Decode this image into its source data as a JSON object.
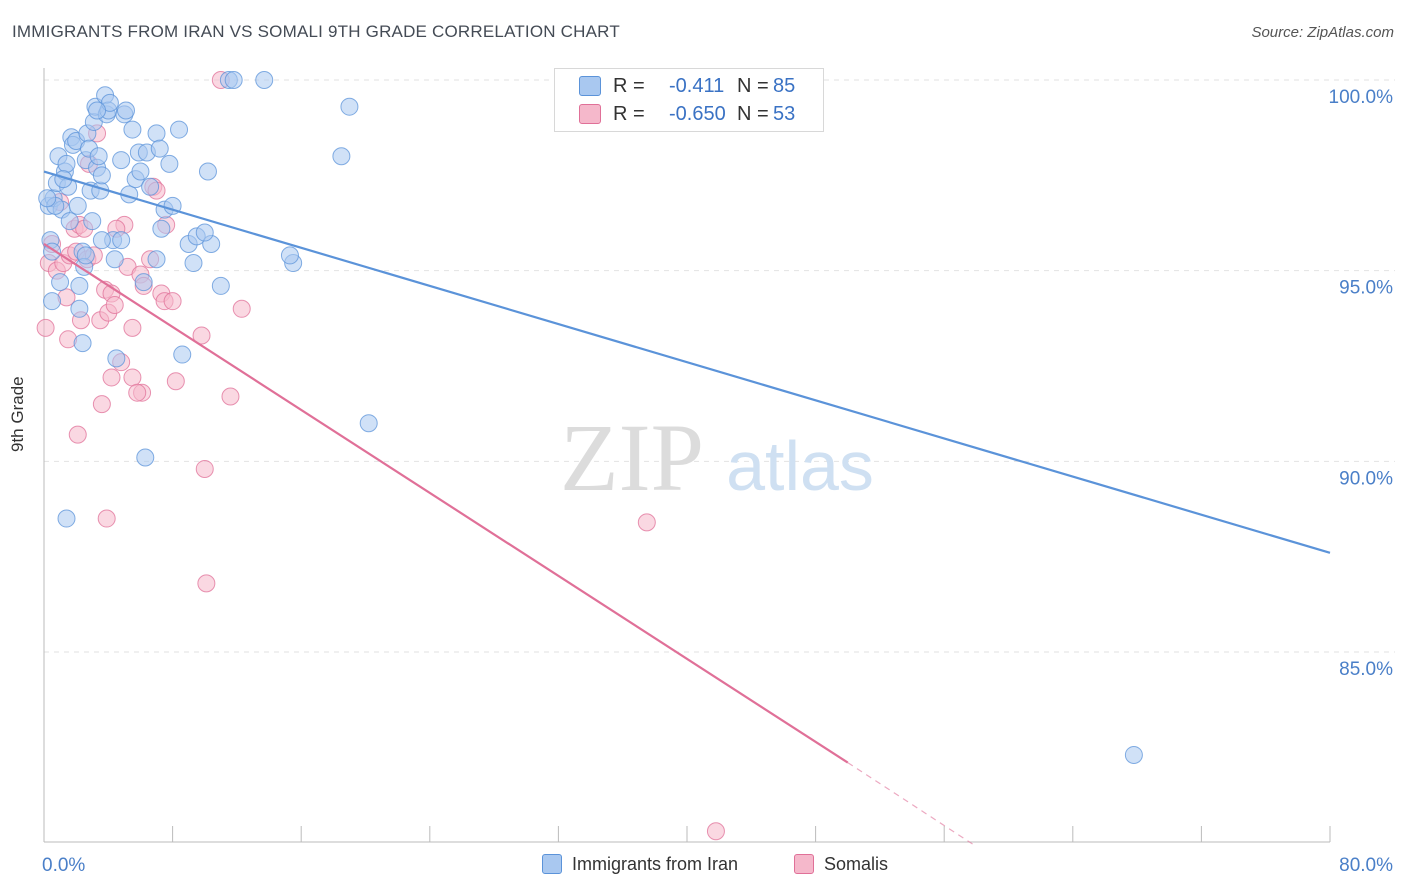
{
  "title": "IMMIGRANTS FROM IRAN VS SOMALI 9TH GRADE CORRELATION CHART",
  "source": "Source: ZipAtlas.com",
  "watermark_zip": "ZIP",
  "watermark_atlas": "atlas",
  "stats": [
    {
      "r_label": "R =",
      "r_value": "-0.411",
      "n_label": "N =",
      "n_value": "85",
      "color": "#5b93d9",
      "fill": "#a9c8f0"
    },
    {
      "r_label": "R =",
      "r_value": "-0.650",
      "n_label": "N =",
      "n_value": "53",
      "color": "#e07098",
      "fill": "#f5b8cb"
    }
  ],
  "legend": [
    {
      "label": "Immigrants from Iran",
      "color": "#5b93d9",
      "fill": "#a9c8f0"
    },
    {
      "label": "Somalis",
      "color": "#e07098",
      "fill": "#f5b8cb"
    }
  ],
  "chart_data": {
    "type": "scatter",
    "xlabel": "",
    "ylabel": "9th Grade",
    "xlim": [
      0,
      80
    ],
    "ylim": [
      79.5,
      101
    ],
    "x_tick_labels": [
      "0.0%",
      "80.0%"
    ],
    "y_ticks": [
      85,
      90,
      95,
      100
    ],
    "y_tick_labels": [
      "85.0%",
      "90.0%",
      "95.0%",
      "100.0%"
    ],
    "grid": true,
    "series": [
      {
        "name": "Immigrants from Iran",
        "color": "#5b93d9",
        "trend": {
          "x": [
            0,
            80
          ],
          "y": [
            97.6,
            87.6
          ]
        },
        "points": [
          [
            0.3,
            96.7
          ],
          [
            0.4,
            95.8
          ],
          [
            0.5,
            94.2
          ],
          [
            0.6,
            96.9
          ],
          [
            0.8,
            97.3
          ],
          [
            0.9,
            98.0
          ],
          [
            1.0,
            94.7
          ],
          [
            1.1,
            96.6
          ],
          [
            1.3,
            97.6
          ],
          [
            1.4,
            97.8
          ],
          [
            1.5,
            97.2
          ],
          [
            1.6,
            96.3
          ],
          [
            1.7,
            98.5
          ],
          [
            1.8,
            98.3
          ],
          [
            2.0,
            98.4
          ],
          [
            2.1,
            96.7
          ],
          [
            2.2,
            94.6
          ],
          [
            2.4,
            95.5
          ],
          [
            2.5,
            95.1
          ],
          [
            2.6,
            97.9
          ],
          [
            2.7,
            98.6
          ],
          [
            2.8,
            98.2
          ],
          [
            2.9,
            97.1
          ],
          [
            3.0,
            96.3
          ],
          [
            3.1,
            98.9
          ],
          [
            3.2,
            99.3
          ],
          [
            3.3,
            97.7
          ],
          [
            3.4,
            98.0
          ],
          [
            3.5,
            97.1
          ],
          [
            3.6,
            97.5
          ],
          [
            3.8,
            99.6
          ],
          [
            3.9,
            99.1
          ],
          [
            4.0,
            99.2
          ],
          [
            4.1,
            99.4
          ],
          [
            4.3,
            95.8
          ],
          [
            4.4,
            95.3
          ],
          [
            4.8,
            97.9
          ],
          [
            5.0,
            99.1
          ],
          [
            5.3,
            97.0
          ],
          [
            5.5,
            98.7
          ],
          [
            5.7,
            97.4
          ],
          [
            5.9,
            98.1
          ],
          [
            6.0,
            97.6
          ],
          [
            6.2,
            94.7
          ],
          [
            6.4,
            98.1
          ],
          [
            6.6,
            97.2
          ],
          [
            7.0,
            98.6
          ],
          [
            7.2,
            98.2
          ],
          [
            7.3,
            96.1
          ],
          [
            7.5,
            96.6
          ],
          [
            7.8,
            97.8
          ],
          [
            8.0,
            96.7
          ],
          [
            8.4,
            98.7
          ],
          [
            9.0,
            95.7
          ],
          [
            9.3,
            95.2
          ],
          [
            9.5,
            95.9
          ],
          [
            10.2,
            97.6
          ],
          [
            10.4,
            95.7
          ],
          [
            11.0,
            94.6
          ],
          [
            11.5,
            100.0
          ],
          [
            11.8,
            100.0
          ],
          [
            13.7,
            100.0
          ],
          [
            15.5,
            95.2
          ],
          [
            15.3,
            95.4
          ],
          [
            18.5,
            98.0
          ],
          [
            19.0,
            99.3
          ],
          [
            20.2,
            91.0
          ],
          [
            2.6,
            95.4
          ],
          [
            1.2,
            97.4
          ],
          [
            0.7,
            96.7
          ],
          [
            3.3,
            99.2
          ],
          [
            4.5,
            92.7
          ],
          [
            4.8,
            95.8
          ],
          [
            8.6,
            92.8
          ],
          [
            1.4,
            88.5
          ],
          [
            2.4,
            93.1
          ],
          [
            6.3,
            90.1
          ],
          [
            5.1,
            99.2
          ],
          [
            2.2,
            94.0
          ],
          [
            7.0,
            95.3
          ],
          [
            0.5,
            95.5
          ],
          [
            0.2,
            96.9
          ],
          [
            67.8,
            82.3
          ],
          [
            3.6,
            95.8
          ],
          [
            10.0,
            96.0
          ]
        ]
      },
      {
        "name": "Somalis",
        "color": "#e07098",
        "trend": {
          "x": [
            0,
            50
          ],
          "y": [
            95.7,
            82.1
          ]
        },
        "trend_dashed": {
          "x": [
            50,
            58
          ],
          "y": [
            82.1,
            79.9
          ]
        },
        "points": [
          [
            0.1,
            93.5
          ],
          [
            0.3,
            95.2
          ],
          [
            0.5,
            95.7
          ],
          [
            0.8,
            95.0
          ],
          [
            1.0,
            96.8
          ],
          [
            1.2,
            95.2
          ],
          [
            1.4,
            94.3
          ],
          [
            1.5,
            93.2
          ],
          [
            1.6,
            95.4
          ],
          [
            1.9,
            96.1
          ],
          [
            2.0,
            95.5
          ],
          [
            2.2,
            96.2
          ],
          [
            2.3,
            93.7
          ],
          [
            2.5,
            96.1
          ],
          [
            2.7,
            95.3
          ],
          [
            3.1,
            95.4
          ],
          [
            3.3,
            98.6
          ],
          [
            3.5,
            93.7
          ],
          [
            3.8,
            94.5
          ],
          [
            4.0,
            93.9
          ],
          [
            4.2,
            94.4
          ],
          [
            4.4,
            94.1
          ],
          [
            5.0,
            96.2
          ],
          [
            5.2,
            95.1
          ],
          [
            5.5,
            93.5
          ],
          [
            6.0,
            94.9
          ],
          [
            6.2,
            94.6
          ],
          [
            6.6,
            95.3
          ],
          [
            6.8,
            97.2
          ],
          [
            7.0,
            97.1
          ],
          [
            7.3,
            94.4
          ],
          [
            7.5,
            94.2
          ],
          [
            7.6,
            96.2
          ],
          [
            8.0,
            94.2
          ],
          [
            8.2,
            92.1
          ],
          [
            9.8,
            93.3
          ],
          [
            10.0,
            89.8
          ],
          [
            10.1,
            86.8
          ],
          [
            11.6,
            91.7
          ],
          [
            12.3,
            94.0
          ],
          [
            2.1,
            90.7
          ],
          [
            3.6,
            91.5
          ],
          [
            4.2,
            92.2
          ],
          [
            4.8,
            92.6
          ],
          [
            5.5,
            92.2
          ],
          [
            6.1,
            91.8
          ],
          [
            3.9,
            88.5
          ],
          [
            11.0,
            100.0
          ],
          [
            37.5,
            88.4
          ],
          [
            41.8,
            80.3
          ],
          [
            4.5,
            96.1
          ],
          [
            2.8,
            97.8
          ],
          [
            5.8,
            91.8
          ]
        ]
      }
    ]
  }
}
